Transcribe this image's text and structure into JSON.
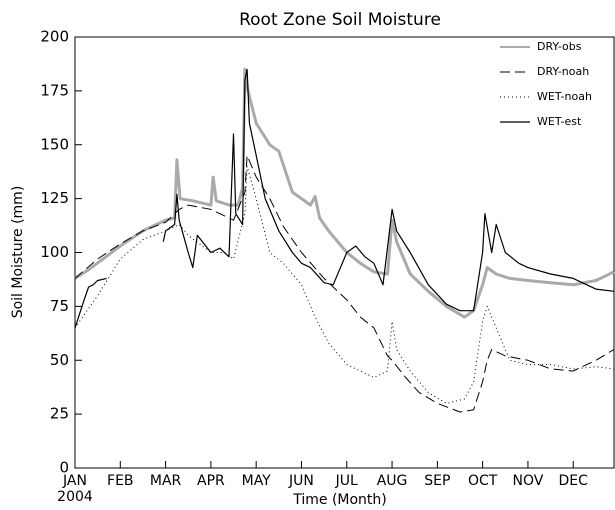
{
  "chart_data": {
    "type": "line",
    "title": "Root Zone Soil Moisture",
    "xlabel": "Time (Month)",
    "ylabel": "Soil Moisture (mm)",
    "year_label": "2004",
    "xlim": [
      0,
      11.9
    ],
    "xticks": [
      {
        "value": 0,
        "label": "JAN"
      },
      {
        "value": 1,
        "label": "FEB"
      },
      {
        "value": 2,
        "label": "MAR"
      },
      {
        "value": 3,
        "label": "APR"
      },
      {
        "value": 4,
        "label": "MAY"
      },
      {
        "value": 5,
        "label": "JUN"
      },
      {
        "value": 6,
        "label": "JUL"
      },
      {
        "value": 7,
        "label": "AUG"
      },
      {
        "value": 8,
        "label": "SEP"
      },
      {
        "value": 9,
        "label": "OCT"
      },
      {
        "value": 10,
        "label": "NOV"
      },
      {
        "value": 11,
        "label": "DEC"
      }
    ],
    "ylim": [
      0,
      200
    ],
    "yticks": [
      0,
      25,
      50,
      75,
      100,
      125,
      150,
      175,
      200
    ],
    "legend": "upper right",
    "series": [
      {
        "name": "DRY-obs",
        "color": "#aaaaaa",
        "width": 3,
        "dash": "none",
        "x": [
          0,
          0.3,
          1.0,
          1.5,
          2,
          2.2,
          2.25,
          2.32,
          2.6,
          3.0,
          3.05,
          3.12,
          3.4,
          3.6,
          3.7,
          3.75,
          3.82,
          4.0,
          4.3,
          4.5,
          4.8,
          5.0,
          5.2,
          5.3,
          5.4,
          5.6,
          6.0,
          6.3,
          6.6,
          6.9,
          7.0,
          7.1,
          7.4,
          7.8,
          8.2,
          8.6,
          8.8,
          9.0,
          9.1,
          9.3,
          9.6,
          10.0,
          10.5,
          11.0,
          11.5,
          11.9
        ],
        "values": [
          88,
          92,
          103,
          110,
          115,
          116,
          143,
          125,
          124,
          122,
          135,
          124,
          122,
          122,
          130,
          185,
          175,
          160,
          150,
          147,
          128,
          125,
          122,
          126,
          116,
          110,
          100,
          95,
          91,
          90,
          115,
          105,
          90,
          82,
          75,
          70,
          73,
          85,
          93,
          90,
          88,
          87,
          86,
          85,
          87,
          91
        ]
      },
      {
        "name": "DRY-noah",
        "color": "#000000",
        "width": 1,
        "dash": "10 5",
        "x": [
          0,
          0.5,
          1.0,
          1.5,
          2,
          2.3,
          2.5,
          3.0,
          3.5,
          3.75,
          3.8,
          4.0,
          4.3,
          4.6,
          5.0,
          5.5,
          6.0,
          6.3,
          6.6,
          6.9,
          7.0,
          7.3,
          7.6,
          8.0,
          8.5,
          8.8,
          9.0,
          9.1,
          9.2,
          9.5,
          10.0,
          10.5,
          11.0,
          11.5,
          11.9
        ],
        "values": [
          88,
          97,
          104,
          110,
          114,
          120,
          122,
          120,
          115,
          128,
          145,
          135,
          125,
          112,
          100,
          88,
          78,
          70,
          65,
          52,
          50,
          42,
          35,
          30,
          26,
          27,
          40,
          50,
          55,
          52,
          50,
          46,
          45,
          50,
          55
        ]
      },
      {
        "name": "WET-noah",
        "color": "#000000",
        "width": 1,
        "dash": "1 3",
        "x": [
          0,
          0.5,
          1.0,
          1.5,
          2,
          2.3,
          2.5,
          3.0,
          3.3,
          3.5,
          3.75,
          3.8,
          4.0,
          4.3,
          4.6,
          5.0,
          5.3,
          5.6,
          6.0,
          6.3,
          6.6,
          6.9,
          7.0,
          7.1,
          7.4,
          7.8,
          8.2,
          8.6,
          8.8,
          9.0,
          9.1,
          9.3,
          9.6,
          10.0,
          10.5,
          11.0,
          11.5,
          11.9
        ],
        "values": [
          65,
          80,
          97,
          106,
          110,
          113,
          108,
          100,
          100,
          97,
          118,
          140,
          125,
          100,
          95,
          85,
          70,
          58,
          48,
          45,
          42,
          45,
          68,
          55,
          45,
          35,
          30,
          32,
          40,
          68,
          75,
          65,
          50,
          48,
          48,
          46,
          47,
          46
        ]
      },
      {
        "name": "WET-est",
        "color": "#000000",
        "width": 1.2,
        "dash": "none",
        "x": [
          0,
          0.2,
          0.3,
          0.4,
          0.5,
          0.7,
          1.2,
          1.95,
          2.0,
          2.2,
          2.25,
          2.3,
          2.5,
          2.6,
          2.7,
          3.0,
          3.2,
          3.4,
          3.5,
          3.55,
          3.7,
          3.75,
          3.8,
          3.85,
          4.0,
          4.2,
          4.5,
          4.8,
          5.0,
          5.2,
          5.5,
          5.7,
          6.0,
          6.2,
          6.4,
          6.6,
          6.8,
          7.0,
          7.1,
          7.4,
          7.8,
          8.2,
          8.5,
          8.8,
          9.0,
          9.05,
          9.2,
          9.3,
          9.5,
          9.8,
          10.0,
          10.5,
          11.0,
          11.5,
          11.9
        ],
        "values": [
          65,
          78,
          84,
          85,
          87,
          88,
          null,
          105,
          110,
          113,
          127,
          115,
          100,
          93,
          108,
          100,
          102,
          98,
          155,
          118,
          113,
          180,
          185,
          160,
          145,
          125,
          110,
          100,
          95,
          93,
          86,
          85,
          100,
          103,
          98,
          95,
          85,
          120,
          110,
          100,
          85,
          76,
          73,
          73,
          100,
          118,
          100,
          113,
          100,
          95,
          93,
          90,
          88,
          83,
          82
        ]
      }
    ]
  }
}
